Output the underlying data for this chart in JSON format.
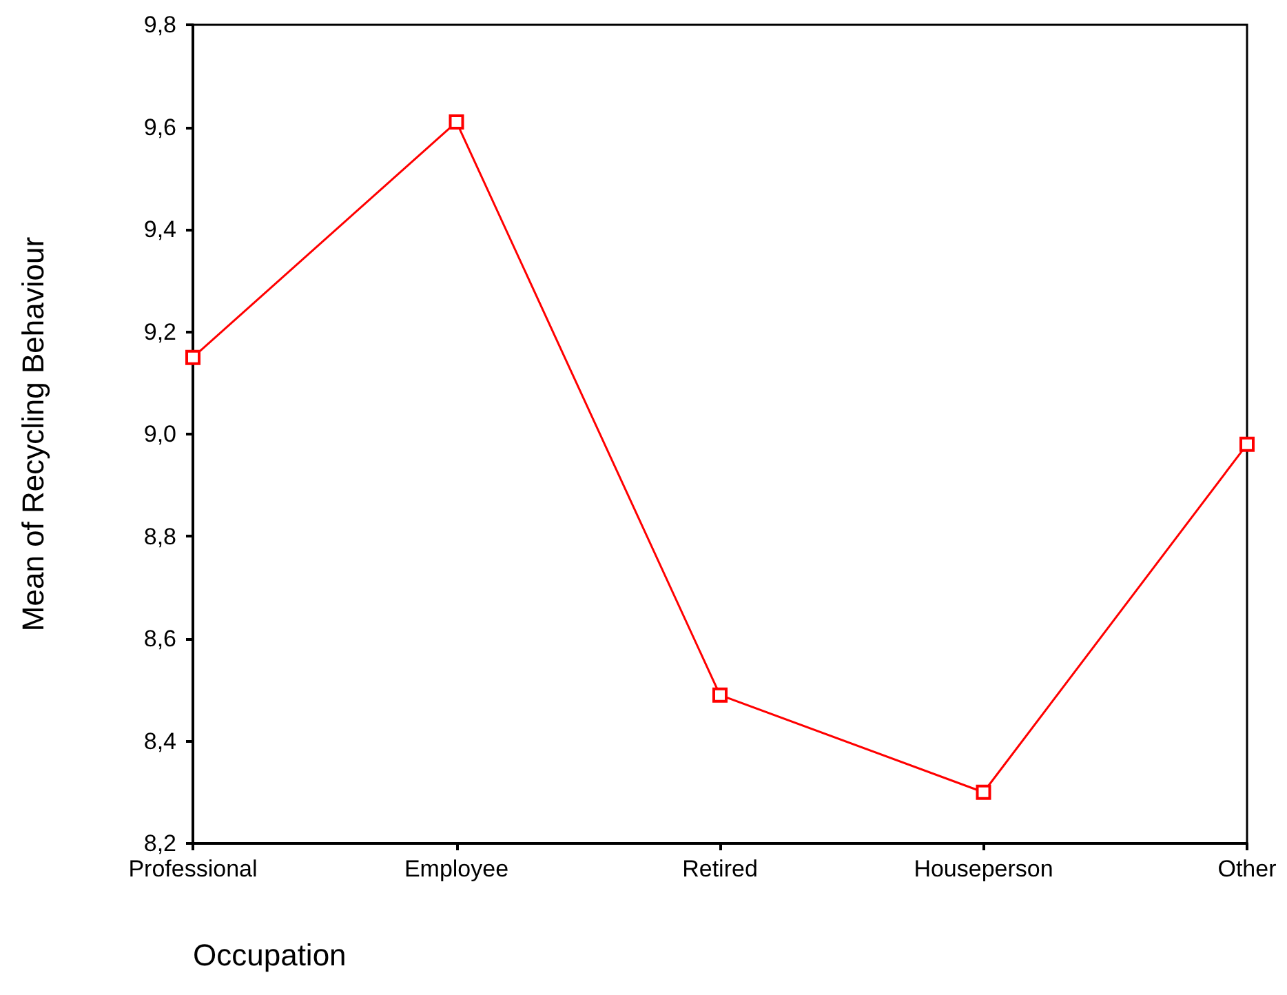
{
  "chart_data": {
    "type": "line",
    "xlabel": "Occupation",
    "ylabel": "Mean of Recycling Behaviour",
    "categories": [
      "Professional",
      "Employee",
      "Retired",
      "Houseperson",
      "Other"
    ],
    "series": [
      {
        "color": "#ff0000",
        "values": [
          9.15,
          9.61,
          8.49,
          8.3,
          8.98
        ]
      }
    ],
    "ylim": [
      8.2,
      9.8
    ],
    "yticks": [
      {
        "value": 8.2,
        "label": "8,2"
      },
      {
        "value": 8.4,
        "label": "8,4"
      },
      {
        "value": 8.6,
        "label": "8,6"
      },
      {
        "value": 8.8,
        "label": "8,8"
      },
      {
        "value": 9.0,
        "label": "9,0"
      },
      {
        "value": 9.2,
        "label": "9,2"
      },
      {
        "value": 9.4,
        "label": "9,4"
      },
      {
        "value": 9.6,
        "label": "9,6"
      },
      {
        "value": 9.8,
        "label": "9,8"
      }
    ],
    "grid": false,
    "legend": false,
    "marker": "square",
    "line_style": "solid"
  }
}
